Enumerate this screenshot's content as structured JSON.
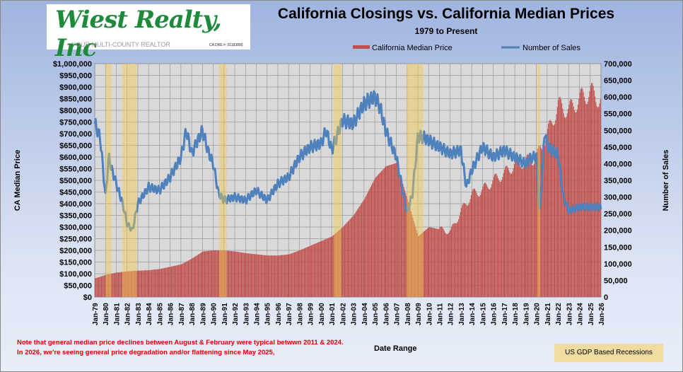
{
  "logo": {
    "name": "Wiest Realty, Inc",
    "tagline": "YOUR MULTI-COUNTY REALTOR",
    "dre": "CA DRE #: 01183800"
  },
  "chart_data": {
    "type": "bar+line",
    "title": "California Closings vs. California Median Prices",
    "subtitle": "1979 to Present",
    "xlabel": "Date Range",
    "ylabel": "CA Median Price",
    "y2label": "Number of Sales",
    "ylim": [
      0,
      1000000
    ],
    "y2lim": [
      0,
      700000
    ],
    "yticks": [
      "$0",
      "$50,000",
      "$100,000",
      "$150,000",
      "$200,000",
      "$250,000",
      "$300,000",
      "$350,000",
      "$400,000",
      "$450,000",
      "$500,000",
      "$550,000",
      "$600,000",
      "$650,000",
      "$700,000",
      "$750,000",
      "$800,000",
      "$850,000",
      "$900,000",
      "$950,000",
      "$1,000,000"
    ],
    "y2ticks": [
      "0",
      "50,000",
      "100,000",
      "150,000",
      "200,000",
      "250,000",
      "300,000",
      "350,000",
      "400,000",
      "450,000",
      "500,000",
      "550,000",
      "600,000",
      "650,000",
      "700,000"
    ],
    "xticks": [
      "Jan-79",
      "Jan-80",
      "Jan-81",
      "Jan-82",
      "Jan-83",
      "Jan-84",
      "Jan-85",
      "Jan-86",
      "Jan-87",
      "Jan-88",
      "Jan-89",
      "Jan-90",
      "Jan-91",
      "Jan-92",
      "Jan-93",
      "Jan-94",
      "Jan-95",
      "Jan-96",
      "Jan-97",
      "Jan-98",
      "Jan-99",
      "Jan-00",
      "Jan-01",
      "Jan-02",
      "Jan-03",
      "Jan-04",
      "Jan-05",
      "Jan-06",
      "Jan-07",
      "Jan-08",
      "Jan-09",
      "Jan-10",
      "Jan-11",
      "Jan-12",
      "Jan-13",
      "Jan-14",
      "Jan-15",
      "Jan-16",
      "Jan-17",
      "Jan-18",
      "Jan-19",
      "Jan-20",
      "Jan-21",
      "Jan-22",
      "Jan-23",
      "Jan-24",
      "Jan-25",
      "Jan-26"
    ],
    "legend": [
      {
        "name": "California Median Price",
        "color": "#c0504d"
      },
      {
        "name": "Number of Sales",
        "color": "#4f81bd"
      }
    ],
    "legend_placement": "top",
    "median_price": {
      "x": [
        1979,
        1980,
        1981,
        1982,
        1983,
        1984,
        1985,
        1986,
        1987,
        1988,
        1989,
        1990,
        1991,
        1992,
        1993,
        1994,
        1995,
        1996,
        1997,
        1998,
        1999,
        2000,
        2001,
        2002,
        2003,
        2004,
        2005,
        2006,
        2007,
        2008,
        2009,
        2010,
        2011,
        2012,
        2013,
        2014,
        2015,
        2016,
        2017,
        2018,
        2019,
        2020,
        2021,
        2022,
        2023,
        2024,
        2025,
        2026
      ],
      "y": [
        80000,
        95000,
        105000,
        110000,
        113000,
        115000,
        120000,
        130000,
        140000,
        165000,
        195000,
        200000,
        200000,
        195000,
        188000,
        183000,
        178000,
        178000,
        183000,
        200000,
        220000,
        240000,
        260000,
        300000,
        350000,
        420000,
        510000,
        560000,
        575000,
        420000,
        260000,
        300000,
        290000,
        280000,
        370000,
        440000,
        460000,
        500000,
        530000,
        570000,
        580000,
        600000,
        700000,
        820000,
        800000,
        850000,
        880000,
        840000
      ]
    },
    "number_of_sales": {
      "x": [
        1979,
        1979.5,
        1980,
        1980.3,
        1980.6,
        1981,
        1981.6,
        1982,
        1982.5,
        1983,
        1984,
        1985,
        1986,
        1987,
        1987.5,
        1988,
        1989,
        1989.6,
        1990,
        1990.5,
        1991,
        1992,
        1993,
        1994,
        1995,
        1996,
        1997,
        1998,
        1999,
        2000,
        2000.5,
        2001,
        2002,
        2003,
        2004,
        2005,
        2005.5,
        2006,
        2007,
        2008,
        2008.5,
        2009,
        2009.5,
        2010,
        2011,
        2012,
        2013,
        2013.5,
        2014,
        2015,
        2016,
        2017,
        2018,
        2019,
        2019.6,
        2020,
        2020.3,
        2020.8,
        2021,
        2022,
        2022.5,
        2023,
        2024,
        2025,
        2026
      ],
      "y": [
        520000,
        480000,
        300000,
        420000,
        380000,
        340000,
        280000,
        220000,
        200000,
        280000,
        330000,
        320000,
        360000,
        420000,
        500000,
        430000,
        500000,
        430000,
        400000,
        310000,
        290000,
        300000,
        290000,
        320000,
        290000,
        340000,
        360000,
        420000,
        450000,
        460000,
        500000,
        440000,
        530000,
        520000,
        580000,
        600000,
        570000,
        500000,
        420000,
        250000,
        310000,
        480000,
        480000,
        470000,
        450000,
        430000,
        440000,
        330000,
        380000,
        450000,
        420000,
        440000,
        420000,
        400000,
        420000,
        420000,
        240000,
        510000,
        450000,
        430000,
        300000,
        260000,
        270000,
        270000,
        270000
      ]
    },
    "recessions": {
      "label": "US GDP Based Recessions",
      "periods": [
        [
          1980.0,
          1980.55
        ],
        [
          1981.55,
          1982.9
        ],
        [
          1990.55,
          1991.25
        ],
        [
          2001.2,
          2001.9
        ],
        [
          2007.95,
          2009.5
        ],
        [
          2020.1,
          2020.35
        ]
      ]
    }
  },
  "notes": [
    "Note that general median price declines between August  & February were typical betwwn  2011 & 2024.",
    "In 2026, we're seeing general price degradation and/or flattening since May 2025,"
  ]
}
